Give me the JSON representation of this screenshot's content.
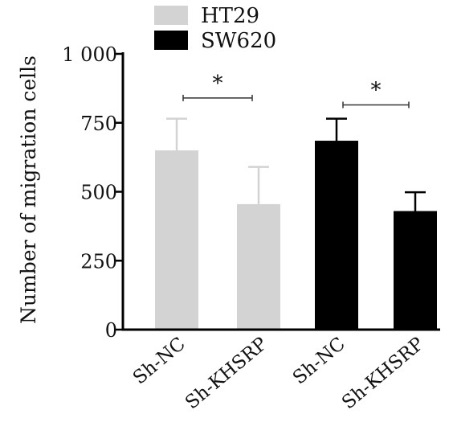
{
  "chart_data": {
    "type": "bar",
    "title": "",
    "ylabel": "Number of migration cells",
    "xlabel": "",
    "ylim": [
      0,
      1000
    ],
    "yticks": [
      0,
      250,
      500,
      750,
      1000
    ],
    "ytick_labels": [
      "0",
      "250",
      "500",
      "750",
      "1 000"
    ],
    "legend_position": "top-left",
    "legend": [
      {
        "name": "HT29",
        "color": "#d3d3d3"
      },
      {
        "name": "SW620",
        "color": "#000000"
      }
    ],
    "bars": [
      {
        "label": "Sh-NC",
        "series": "HT29",
        "value": 650,
        "error": 115,
        "color": "#d3d3d3"
      },
      {
        "label": "Sh-KHSRP",
        "series": "HT29",
        "value": 455,
        "error": 135,
        "color": "#d3d3d3"
      },
      {
        "label": "Sh-NC",
        "series": "SW620",
        "value": 685,
        "error": 80,
        "color": "#000000"
      },
      {
        "label": "Sh-KHSRP",
        "series": "SW620",
        "value": 430,
        "error": 68,
        "color": "#000000"
      }
    ],
    "significance": [
      {
        "from_bar": 0,
        "to_bar": 1,
        "y": 840,
        "label": "*"
      },
      {
        "from_bar": 2,
        "to_bar": 3,
        "y": 815,
        "label": "*"
      }
    ]
  }
}
